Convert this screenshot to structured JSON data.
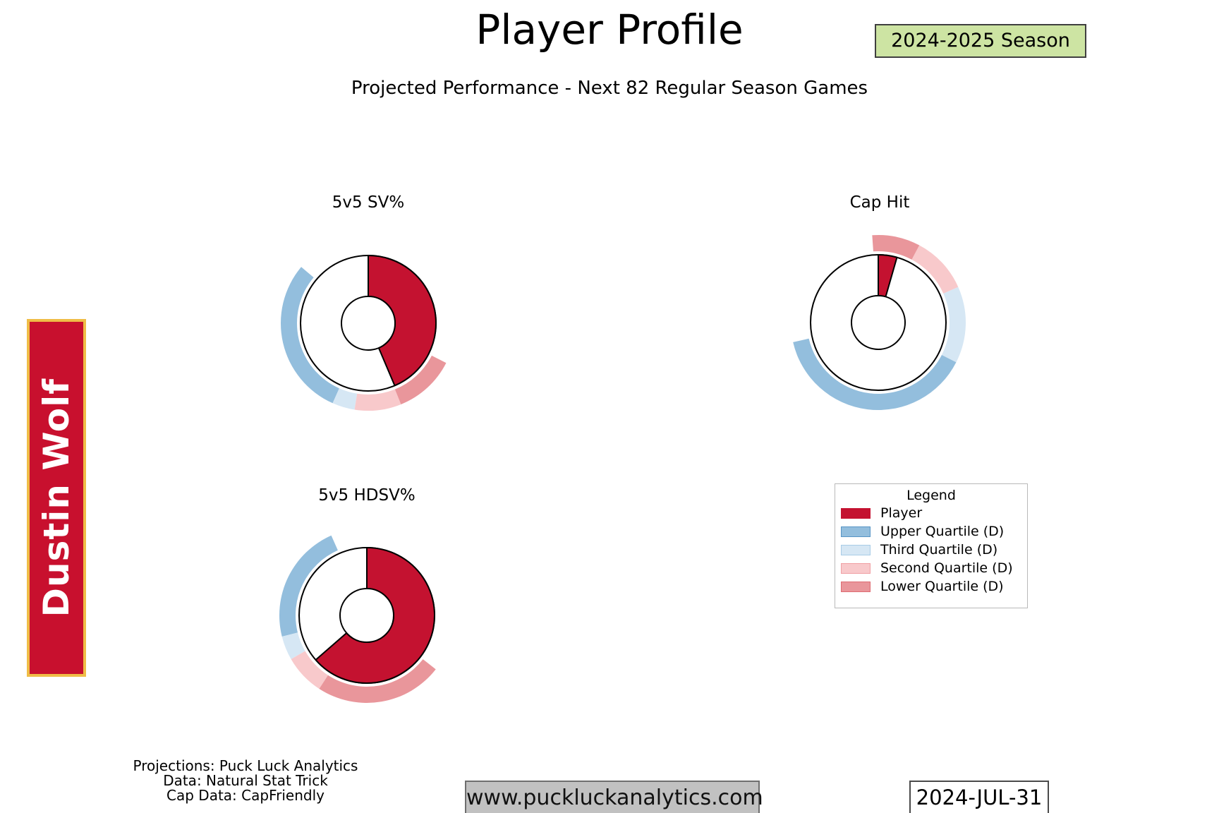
{
  "header": {
    "title": "Player Profile",
    "season_badge": "2024-2025 Season",
    "subtitle": "Projected Performance - Next 82 Regular Season Games"
  },
  "player": {
    "name": "Dustin Wolf"
  },
  "colors": {
    "player": {
      "fill": "#C41230",
      "edge": "#C41230"
    },
    "upper": {
      "fill": "#93BEDD",
      "edge": "#5795C5"
    },
    "third": {
      "fill": "#D6E7F4",
      "edge": "#A8CCE6"
    },
    "second": {
      "fill": "#F8C9CB",
      "edge": "#F0A0A4"
    },
    "lower": {
      "fill": "#E9969B",
      "edge": "#DE6B72"
    },
    "banner_red": "#C8102E",
    "banner_gold": "#EFBD47",
    "badge_green": "#CDE4A3",
    "website_box_gray": "#C1C1C1"
  },
  "chart_data": [
    {
      "type": "donut",
      "title": "5v5 SV%",
      "player_fraction": 0.436,
      "player_angle_deg": 157,
      "quartile_arcs_deg": {
        "lower": [
          117,
          158
        ],
        "second": [
          158,
          189
        ],
        "third": [
          189,
          204
        ],
        "upper": [
          204,
          310
        ]
      }
    },
    {
      "type": "donut",
      "title": "Cap Hit",
      "player_fraction": 0.044,
      "player_angle_deg": 16,
      "quartile_arcs_deg": {
        "lower": [
          -4,
          28
        ],
        "second": [
          28,
          66
        ],
        "third": [
          66,
          117
        ],
        "upper": [
          117,
          257
        ]
      }
    },
    {
      "type": "donut",
      "title": "5v5 HDSV%",
      "player_fraction": 0.636,
      "player_angle_deg": 229,
      "quartile_arcs_deg": {
        "lower": [
          128,
          213
        ],
        "second": [
          213,
          240
        ],
        "third": [
          240,
          256
        ],
        "upper": [
          256,
          336
        ]
      }
    }
  ],
  "legend": {
    "title": "Legend",
    "items": [
      {
        "label": "Player",
        "color_key": "player"
      },
      {
        "label": "Upper Quartile (D)",
        "color_key": "upper"
      },
      {
        "label": "Third Quartile (D)",
        "color_key": "third"
      },
      {
        "label": "Second Quartile (D)",
        "color_key": "second"
      },
      {
        "label": "Lower Quartile (D)",
        "color_key": "lower"
      }
    ]
  },
  "footer": {
    "credits": [
      "Projections: Puck Luck Analytics",
      "Data: Natural Stat Trick",
      "Cap Data: CapFriendly"
    ],
    "website": "www.puckluckanalytics.com",
    "date": "2024-JUL-31"
  }
}
